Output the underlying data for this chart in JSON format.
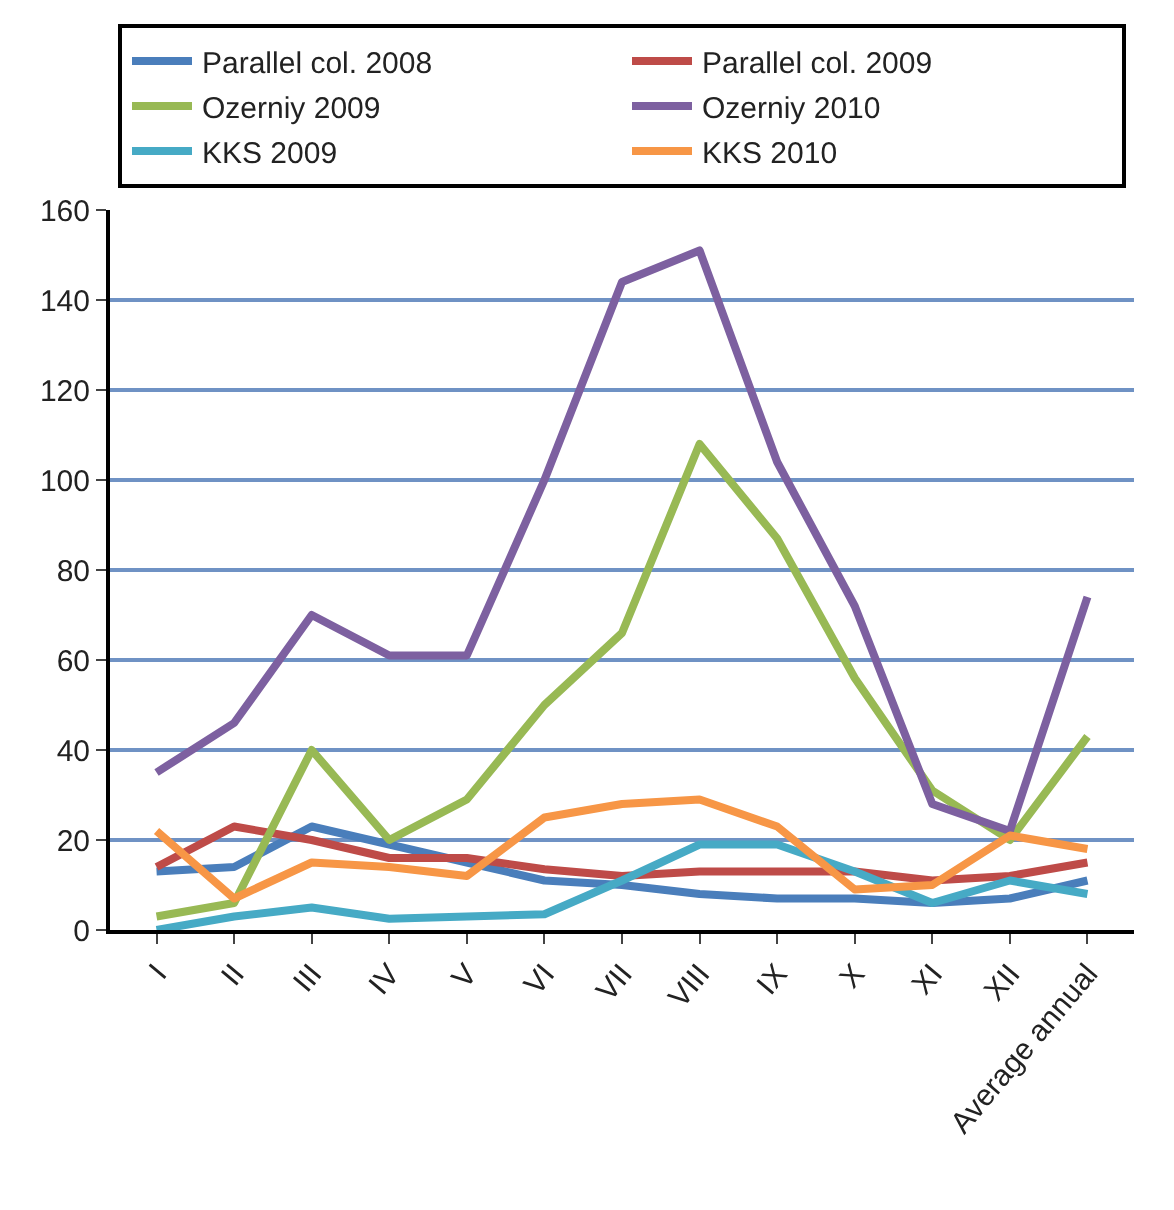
{
  "chart_data": {
    "type": "line",
    "categories": [
      "I",
      "II",
      "III",
      "IV",
      "V",
      "VI",
      "VII",
      "VIII",
      "IX",
      "X",
      "XI",
      "XII",
      "Average annual"
    ],
    "series": [
      {
        "name": "Parallel col. 2008",
        "color": "#4a7ebb",
        "values": [
          13,
          14,
          23,
          19,
          15,
          11,
          10,
          8,
          7,
          7,
          6,
          7,
          11
        ]
      },
      {
        "name": "Parallel col. 2009",
        "color": "#be4b48",
        "values": [
          14,
          23,
          20,
          16,
          16,
          13.5,
          12,
          13,
          13,
          13,
          11,
          12,
          15
        ]
      },
      {
        "name": "Ozerniy 2009",
        "color": "#98b954",
        "values": [
          3,
          6,
          40,
          20,
          29,
          50,
          66,
          108,
          87,
          56,
          31,
          20,
          43
        ]
      },
      {
        "name": "Ozerniy 2010",
        "color": "#7d60a0",
        "values": [
          35,
          46,
          70,
          61,
          61,
          100,
          144,
          151,
          104,
          72,
          28,
          22,
          74
        ]
      },
      {
        "name": "KKS 2009",
        "color": "#46aac5",
        "values": [
          0,
          3,
          5,
          2.5,
          3,
          3.5,
          11,
          19,
          19,
          13,
          6,
          11,
          8
        ]
      },
      {
        "name": "KKS 2010",
        "color": "#f79646",
        "values": [
          22,
          7,
          15,
          14,
          12,
          25,
          28,
          29,
          23,
          9,
          10,
          21,
          18
        ]
      }
    ],
    "ylim": [
      0,
      160
    ],
    "yticks": [
      0,
      20,
      40,
      60,
      80,
      100,
      120,
      140,
      160
    ],
    "grid": "y",
    "legend": "top",
    "marker": "none",
    "line_style": "solid"
  }
}
